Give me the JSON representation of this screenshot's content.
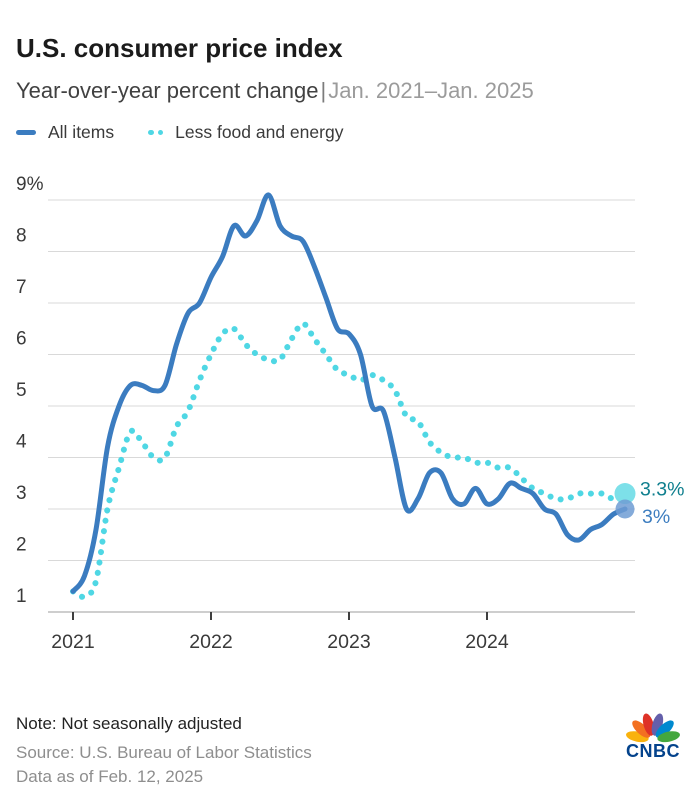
{
  "header": {
    "title": "U.S. consumer price index",
    "subtitle_main": "Year-over-year percent change",
    "subtitle_separator": "|",
    "subtitle_range": "Jan. 2021–Jan. 2025"
  },
  "legend": {
    "items": [
      {
        "label": "All items",
        "style": "solid",
        "color": "#3b7cc0"
      },
      {
        "label": "Less food and energy",
        "style": "dotted",
        "color": "#4fd7e4"
      }
    ]
  },
  "chart_data": {
    "type": "line",
    "title": "U.S. consumer price index",
    "subtitle": "Year-over-year percent change | Jan. 2021–Jan. 2025",
    "x_unit": "month",
    "x_range": [
      "Jan 2021",
      "Jan 2025"
    ],
    "x_tick_labels": [
      "2021",
      "2022",
      "2023",
      "2024"
    ],
    "x_tick_month_index": [
      0,
      12,
      24,
      36
    ],
    "ylim": [
      1,
      9
    ],
    "y_ticks": [
      1,
      2,
      3,
      4,
      5,
      6,
      7,
      8,
      9
    ],
    "y_top_tick_label": "9%",
    "grid": "horizontal",
    "legend_position": "top-left",
    "colors": {
      "gridline": "#d9d9d9",
      "axis_line": "#bdbdbd",
      "tick_mark": "#3f3f3f",
      "axis_text": "#3a3a3a"
    },
    "series": [
      {
        "name": "All items",
        "style": "solid",
        "color": "#3b7cc0",
        "end_dot_color": "#6f9cd4",
        "end_label": "3%",
        "end_label_color": "#3e7ec0",
        "values": [
          1.4,
          1.7,
          2.6,
          4.2,
          5.0,
          5.4,
          5.4,
          5.3,
          5.4,
          6.2,
          6.8,
          7.0,
          7.5,
          7.9,
          8.5,
          8.3,
          8.6,
          9.1,
          8.5,
          8.3,
          8.2,
          7.7,
          7.1,
          6.5,
          6.4,
          6.0,
          5.0,
          4.9,
          4.0,
          3.0,
          3.2,
          3.7,
          3.7,
          3.2,
          3.1,
          3.4,
          3.1,
          3.2,
          3.5,
          3.4,
          3.3,
          3.0,
          2.9,
          2.5,
          2.4,
          2.6,
          2.7,
          2.9,
          3.0
        ]
      },
      {
        "name": "Less food and energy",
        "style": "dotted",
        "color": "#4fd7e4",
        "end_dot_color": "#7de0e9",
        "end_label": "3.3%",
        "end_label_color": "#0f7f8e",
        "values": [
          1.4,
          1.3,
          1.6,
          3.0,
          3.8,
          4.5,
          4.3,
          4.0,
          4.0,
          4.6,
          4.9,
          5.5,
          6.0,
          6.4,
          6.5,
          6.2,
          6.0,
          5.9,
          5.9,
          6.3,
          6.6,
          6.3,
          6.0,
          5.7,
          5.6,
          5.5,
          5.6,
          5.5,
          5.3,
          4.8,
          4.7,
          4.3,
          4.1,
          4.0,
          4.0,
          3.9,
          3.9,
          3.8,
          3.8,
          3.6,
          3.4,
          3.3,
          3.2,
          3.2,
          3.3,
          3.3,
          3.3,
          3.2,
          3.3
        ]
      }
    ]
  },
  "footer": {
    "note": "Note: Not seasonally adjusted",
    "source": "Source: U.S. Bureau of Labor Statistics",
    "data_as_of": "Data as of Feb. 12, 2025",
    "logo_text": "CNBC",
    "logo_colors": {
      "yellow": "#f9b20d",
      "orange": "#f37021",
      "red": "#de3227",
      "purple": "#645faa",
      "blue": "#0089cf",
      "green": "#44a73e",
      "wordmark": "#04438c"
    }
  }
}
